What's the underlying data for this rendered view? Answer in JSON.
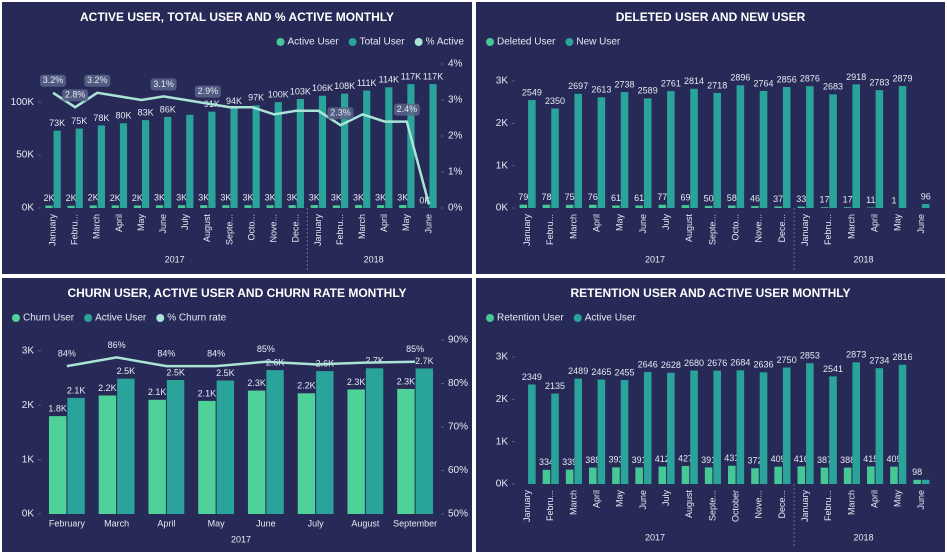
{
  "chart_data": [
    {
      "type": "combo",
      "title": "ACTIVE USER, TOTAL USER AND % ACTIVE MONTHLY",
      "legend": "top-right",
      "categories": [
        "January",
        "Febru...",
        "March",
        "April",
        "May",
        "June",
        "July",
        "August",
        "Septe...",
        "Octo...",
        "Nove...",
        "Dece...",
        "January",
        "Febru...",
        "March",
        "April",
        "May",
        "June"
      ],
      "groups": [
        {
          "label": "2017",
          "months": 12
        },
        {
          "label": "2018",
          "months": 6
        }
      ],
      "series": [
        {
          "name": "Active User",
          "color": "#45c896",
          "values": [
            2349,
            2135,
            2489,
            2465,
            2455,
            2646,
            2628,
            2680,
            2676,
            2684,
            2636,
            2750,
            2853,
            2541,
            2873,
            2734,
            2816,
            98
          ],
          "value_labels": [
            "2K",
            "2K",
            "2K",
            "2K",
            "2K",
            "3K",
            "3K",
            "3K",
            "3K",
            "3K",
            "3K",
            "3K",
            "3K",
            "3K",
            "3K",
            "3K",
            "3K",
            "0K"
          ]
        },
        {
          "name": "Total User",
          "color": "#2aa39a",
          "values": [
            73000,
            75000,
            78000,
            80000,
            83000,
            86000,
            88000,
            91000,
            94000,
            97000,
            100000,
            103000,
            106000,
            108000,
            111000,
            114000,
            117000,
            117000
          ],
          "value_labels": [
            "73K",
            "75K",
            "78K",
            "80K",
            "83K",
            "86K",
            null,
            "91K",
            "94K",
            "97K",
            "100K",
            "103K",
            "106K",
            "108K",
            "111K",
            "114K",
            "117K",
            "117K"
          ]
        },
        {
          "name": "% Active",
          "color": "#a9e4d6",
          "axis": "y2",
          "values": [
            3.2,
            2.8,
            3.2,
            3.1,
            3.0,
            3.1,
            3.0,
            2.9,
            2.8,
            2.8,
            2.6,
            2.7,
            2.7,
            2.3,
            2.6,
            2.4,
            2.4,
            0.1
          ],
          "value_labels": [
            "3.2%",
            "2.8%",
            "3.2%",
            null,
            null,
            "3.1%",
            null,
            "2.9%",
            null,
            null,
            null,
            null,
            null,
            "2.3%",
            null,
            null,
            "2.4%",
            null
          ]
        }
      ],
      "ylim": [
        0,
        136000
      ],
      "yticks": [
        {
          "value": 0,
          "label": "0K"
        },
        {
          "value": 50000,
          "label": "50K"
        },
        {
          "value": 100000,
          "label": "100K"
        }
      ],
      "y2lim": [
        0,
        4
      ],
      "y2ticks": [
        {
          "value": 0,
          "label": "0%"
        },
        {
          "value": 1,
          "label": "1%"
        },
        {
          "value": 2,
          "label": "2%"
        },
        {
          "value": 3,
          "label": "3%"
        },
        {
          "value": 4,
          "label": "4%"
        }
      ]
    },
    {
      "type": "bar",
      "title": "DELETED USER AND NEW USER",
      "legend": "top-left",
      "categories": [
        "January",
        "Febru...",
        "March",
        "April",
        "May",
        "June",
        "July",
        "August",
        "Septe...",
        "Octo...",
        "Nove...",
        "Dece...",
        "January",
        "Febru...",
        "March",
        "April",
        "May",
        "June"
      ],
      "groups": [
        {
          "label": "2017",
          "months": 12
        },
        {
          "label": "2018",
          "months": 6
        }
      ],
      "series": [
        {
          "name": "Deleted User",
          "color": "#45c896",
          "values": [
            79,
            78,
            75,
            76,
            61,
            61,
            77,
            69,
            50,
            58,
            46,
            37,
            33,
            17,
            17,
            11,
            1,
            null
          ]
        },
        {
          "name": "New User",
          "color": "#2aa39a",
          "values": [
            2549,
            2350,
            2697,
            2613,
            2738,
            2589,
            2761,
            2814,
            2718,
            2896,
            2764,
            2856,
            2876,
            2683,
            2918,
            2783,
            2879,
            96
          ]
        }
      ],
      "ylim": [
        0,
        3400
      ],
      "yticks": [
        {
          "value": 0,
          "label": "0K"
        },
        {
          "value": 1000,
          "label": "1K"
        },
        {
          "value": 2000,
          "label": "2K"
        },
        {
          "value": 3000,
          "label": "3K"
        }
      ]
    },
    {
      "type": "combo",
      "title": "CHURN USER, ACTIVE USER AND CHURN RATE MONTHLY",
      "legend": "top-left",
      "xlabel": "2017",
      "categories": [
        "February",
        "March",
        "April",
        "May",
        "June",
        "July",
        "August",
        "September"
      ],
      "series": [
        {
          "name": "Churn User",
          "color": "#4fd19a",
          "values": [
            1800,
            2180,
            2100,
            2080,
            2270,
            2220,
            2290,
            2300
          ],
          "value_labels": [
            "1.8K",
            "2.2K",
            "2.1K",
            "2.1K",
            "2.3K",
            "2.2K",
            "2.3K",
            "2.3K"
          ]
        },
        {
          "name": "Active User",
          "color": "#2aa39a",
          "values": [
            2135,
            2489,
            2465,
            2455,
            2646,
            2628,
            2680,
            2676
          ],
          "value_labels": [
            "2.1K",
            "2.5K",
            "2.5K",
            "2.5K",
            "2.6K",
            "2.6K",
            "2.7K",
            "2.7K"
          ]
        },
        {
          "name": "% Churn rate",
          "color": "#a9e4d6",
          "axis": "y2",
          "values": [
            84,
            86,
            84,
            84,
            85,
            84.4,
            84.8,
            85
          ],
          "value_labels": [
            "84%",
            "86%",
            "84%",
            "84%",
            "85%",
            null,
            null,
            "85%"
          ]
        }
      ],
      "ylim": [
        0,
        3200
      ],
      "yticks": [
        {
          "value": 0,
          "label": "0K"
        },
        {
          "value": 1000,
          "label": "1K"
        },
        {
          "value": 2000,
          "label": "2K"
        },
        {
          "value": 3000,
          "label": "3K"
        }
      ],
      "y2lim": [
        50,
        90
      ],
      "y2ticks": [
        {
          "value": 50,
          "label": "50%"
        },
        {
          "value": 60,
          "label": "60%"
        },
        {
          "value": 70,
          "label": "70%"
        },
        {
          "value": 80,
          "label": "80%"
        },
        {
          "value": 90,
          "label": "90%"
        }
      ]
    },
    {
      "type": "bar",
      "title": "RETENTION USER AND ACTIVE USER MONTHLY",
      "legend": "top-left",
      "categories": [
        "January",
        "Febru...",
        "March",
        "April",
        "May",
        "June",
        "July",
        "August",
        "Septe...",
        "October",
        "Nove...",
        "Dece...",
        "January",
        "Febru...",
        "March",
        "April",
        "May",
        "June"
      ],
      "groups": [
        {
          "label": "2017",
          "months": 12
        },
        {
          "label": "2018",
          "months": 6
        }
      ],
      "series": [
        {
          "name": "Retention User",
          "color": "#45c896",
          "values": [
            null,
            334,
            339,
            388,
            393,
            391,
            412,
            427,
            391,
            431,
            372,
            409,
            416,
            387,
            388,
            415,
            409,
            98
          ]
        },
        {
          "name": "Active User",
          "color": "#2aa39a",
          "values": [
            2349,
            2135,
            2489,
            2465,
            2455,
            2646,
            2628,
            2680,
            2676,
            2684,
            2636,
            2750,
            2853,
            2541,
            2873,
            2734,
            2816,
            98
          ],
          "value_labels": [
            "2349",
            "2135",
            "2489",
            "2465",
            "2455",
            "2646",
            "2628",
            "2680",
            "2676",
            "2684",
            "2636",
            "2750",
            "2853",
            "2541",
            "2873",
            "2734",
            "2816",
            null
          ]
        }
      ],
      "ylim": [
        0,
        3400
      ],
      "yticks": [
        {
          "value": 0,
          "label": "0K"
        },
        {
          "value": 1000,
          "label": "1K"
        },
        {
          "value": 2000,
          "label": "2K"
        },
        {
          "value": 3000,
          "label": "3K"
        }
      ]
    }
  ]
}
